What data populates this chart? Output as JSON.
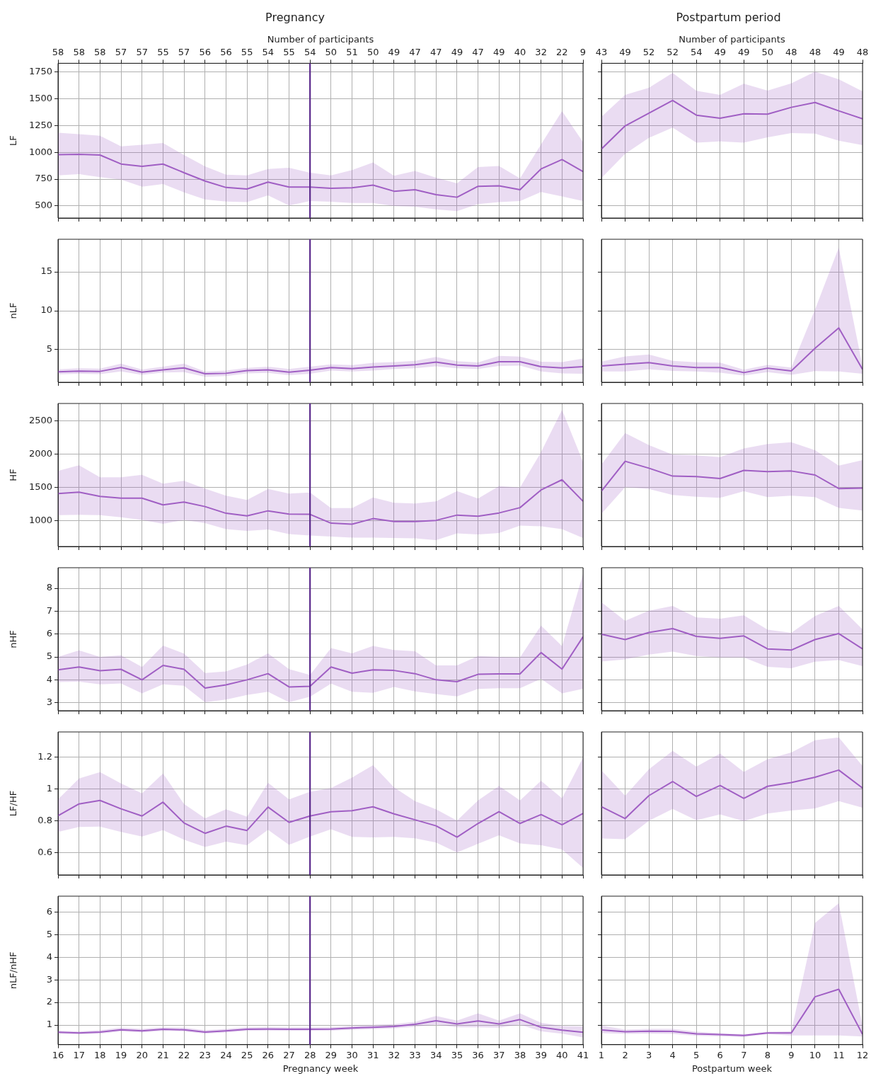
{
  "chart_data": [
    {
      "type": "line",
      "title": "Pregnancy",
      "ylabel": "LF",
      "x2label": "Number of participants",
      "x": [
        16,
        17,
        18,
        19,
        20,
        21,
        22,
        23,
        24,
        25,
        26,
        27,
        28,
        29,
        30,
        31,
        32,
        33,
        34,
        35,
        36,
        37,
        38,
        39,
        40,
        41
      ],
      "xlim": [
        16,
        41
      ],
      "xticks": [
        16,
        17,
        18,
        19,
        20,
        21,
        22,
        23,
        24,
        25,
        26,
        27,
        28,
        29,
        30,
        31,
        32,
        33,
        34,
        35,
        36,
        37,
        38,
        39,
        40,
        41
      ],
      "annotations": [
        "58",
        "58",
        "58",
        "57",
        "57",
        "55",
        "57",
        "56",
        "56",
        "55",
        "54",
        "55",
        "54",
        "50",
        "51",
        "50",
        "49",
        "47",
        "47",
        "49",
        "47",
        "49",
        "40",
        "32",
        "22",
        "9"
      ],
      "ylim": [
        387,
        1831
      ],
      "yticks": [
        500,
        750,
        1000,
        1250,
        1500,
        1750
      ],
      "grid": true,
      "tick_labels": "y",
      "ref_lines": [
        {
          "axis": "x",
          "value": 28,
          "color": "#5b2a8c"
        }
      ],
      "series": [
        {
          "color": "#a15fc4",
          "values": [
            979,
            982,
            975,
            891,
            870,
            891,
            810,
            732,
            672,
            658,
            722,
            676,
            676,
            665,
            669,
            694,
            637,
            651,
            605,
            581,
            683,
            687,
            651,
            845,
            933,
            820
          ],
          "lower": [
            785,
            796,
            768,
            746,
            680,
            704,
            627,
            560,
            540,
            535,
            599,
            505,
            546,
            539,
            528,
            528,
            500,
            493,
            468,
            451,
            518,
            535,
            546,
            630,
            588,
            546
          ],
          "upper": [
            1183,
            1169,
            1155,
            1056,
            1070,
            1088,
            975,
            870,
            792,
            785,
            845,
            856,
            810,
            785,
            835,
            905,
            782,
            827,
            764,
            711,
            863,
            873,
            757,
            1074,
            1384,
            1095
          ]
        }
      ]
    },
    {
      "type": "line",
      "title": "Postpartum period",
      "x2label": "Number of participants",
      "x": [
        1,
        2,
        3,
        4,
        5,
        6,
        7,
        8,
        9,
        10,
        11,
        12
      ],
      "xlim": [
        1,
        12
      ],
      "xticks": [
        1,
        2,
        3,
        4,
        5,
        6,
        7,
        8,
        9,
        10,
        11,
        12
      ],
      "annotations": [
        "43",
        "49",
        "52",
        "52",
        "54",
        "49",
        "49",
        "50",
        "48",
        "48",
        "49",
        "48"
      ],
      "ylim": [
        387,
        1831
      ],
      "yticks": [
        500,
        750,
        1000,
        1250,
        1500,
        1750
      ],
      "grid": true,
      "tick_labels": false,
      "series": [
        {
          "color": "#a15fc4",
          "values": [
            1031,
            1247,
            1365,
            1485,
            1347,
            1318,
            1360,
            1356,
            1420,
            1465,
            1387,
            1313
          ],
          "lower": [
            761,
            986,
            1135,
            1231,
            1091,
            1102,
            1091,
            1140,
            1180,
            1175,
            1109,
            1068
          ],
          "upper": [
            1331,
            1536,
            1603,
            1741,
            1574,
            1536,
            1641,
            1576,
            1643,
            1752,
            1681,
            1570
          ]
        }
      ]
    },
    {
      "type": "line",
      "ylabel": "nLF",
      "x": [
        16,
        17,
        18,
        19,
        20,
        21,
        22,
        23,
        24,
        25,
        26,
        27,
        28,
        29,
        30,
        31,
        32,
        33,
        34,
        35,
        36,
        37,
        38,
        39,
        40,
        41
      ],
      "xlim": [
        16,
        41
      ],
      "xticks": [
        16,
        17,
        18,
        19,
        20,
        21,
        22,
        23,
        24,
        25,
        26,
        27,
        28,
        29,
        30,
        31,
        32,
        33,
        34,
        35,
        36,
        37,
        38,
        39,
        40,
        41
      ],
      "ylim": [
        0.8,
        19.2
      ],
      "yticks": [
        5,
        10,
        15
      ],
      "grid": true,
      "tick_labels": "y",
      "ref_lines": [
        {
          "axis": "x",
          "value": 28,
          "color": "#5b2a8c"
        }
      ],
      "series": [
        {
          "color": "#a15fc4",
          "values": [
            2.15,
            2.24,
            2.2,
            2.7,
            2.1,
            2.4,
            2.65,
            1.9,
            1.95,
            2.3,
            2.4,
            2.1,
            2.35,
            2.7,
            2.55,
            2.75,
            2.9,
            3.05,
            3.4,
            3.0,
            2.9,
            3.45,
            3.45,
            2.8,
            2.65,
            2.8
          ],
          "lower": [
            1.83,
            1.9,
            1.85,
            2.2,
            1.75,
            2.05,
            2.1,
            1.5,
            1.6,
            1.95,
            2.0,
            1.7,
            1.9,
            2.3,
            2.2,
            2.3,
            2.5,
            2.6,
            2.85,
            2.6,
            2.5,
            2.9,
            2.95,
            2.2,
            1.95,
            1.9
          ],
          "upper": [
            2.47,
            2.6,
            2.55,
            3.2,
            2.45,
            2.8,
            3.2,
            2.2,
            2.3,
            2.65,
            2.8,
            2.5,
            2.8,
            3.1,
            3.0,
            3.3,
            3.4,
            3.55,
            4.05,
            3.5,
            3.35,
            4.2,
            4.1,
            3.45,
            3.4,
            3.85
          ]
        }
      ]
    },
    {
      "type": "line",
      "x": [
        1,
        2,
        3,
        4,
        5,
        6,
        7,
        8,
        9,
        10,
        11,
        12
      ],
      "xlim": [
        1,
        12
      ],
      "xticks": [
        1,
        2,
        3,
        4,
        5,
        6,
        7,
        8,
        9,
        10,
        11,
        12
      ],
      "ylim": [
        0.8,
        19.2
      ],
      "yticks": [
        5,
        10,
        15
      ],
      "grid": true,
      "tick_labels": false,
      "series": [
        {
          "color": "#a15fc4",
          "values": [
            2.89,
            3.12,
            3.32,
            2.89,
            2.69,
            2.69,
            2.04,
            2.61,
            2.26,
            5.17,
            7.79,
            2.46
          ],
          "lower": [
            2.18,
            2.18,
            2.46,
            2.26,
            2.18,
            2.04,
            1.67,
            2.09,
            1.75,
            2.24,
            2.18,
            1.89
          ],
          "upper": [
            3.46,
            4.12,
            4.37,
            3.55,
            3.38,
            3.32,
            2.41,
            3.03,
            2.69,
            10.16,
            18.13,
            2.89
          ]
        }
      ]
    },
    {
      "type": "line",
      "ylabel": "HF",
      "x": [
        16,
        17,
        18,
        19,
        20,
        21,
        22,
        23,
        24,
        25,
        26,
        27,
        28,
        29,
        30,
        31,
        32,
        33,
        34,
        35,
        36,
        37,
        38,
        39,
        40,
        41
      ],
      "xlim": [
        16,
        41
      ],
      "xticks": [
        16,
        17,
        18,
        19,
        20,
        21,
        22,
        23,
        24,
        25,
        26,
        27,
        28,
        29,
        30,
        31,
        32,
        33,
        34,
        35,
        36,
        37,
        38,
        39,
        40,
        41
      ],
      "ylim": [
        612,
        2766
      ],
      "yticks": [
        1000,
        1500,
        2000,
        2500
      ],
      "grid": true,
      "tick_labels": "y",
      "ref_lines": [
        {
          "axis": "x",
          "value": 28,
          "color": "#5b2a8c"
        }
      ],
      "series": [
        {
          "color": "#a15fc4",
          "values": [
            1410,
            1431,
            1367,
            1340,
            1340,
            1239,
            1282,
            1213,
            1112,
            1074,
            1149,
            1101,
            1096,
            963,
            947,
            1032,
            989,
            989,
            1005,
            1085,
            1069,
            1117,
            1197,
            1463,
            1617,
            1293
          ],
          "lower": [
            1085,
            1090,
            1085,
            1053,
            1011,
            952,
            1011,
            963,
            872,
            846,
            867,
            798,
            777,
            761,
            745,
            745,
            739,
            734,
            707,
            809,
            793,
            814,
            926,
            915,
            872,
            739
          ],
          "upper": [
            1750,
            1835,
            1654,
            1654,
            1691,
            1559,
            1601,
            1484,
            1378,
            1314,
            1479,
            1410,
            1426,
            1191,
            1191,
            1351,
            1271,
            1261,
            1293,
            1447,
            1335,
            1521,
            1500,
            2032,
            2670,
            1883
          ]
        }
      ]
    },
    {
      "type": "line",
      "x": [
        1,
        2,
        3,
        4,
        5,
        6,
        7,
        8,
        9,
        10,
        11,
        12
      ],
      "xlim": [
        1,
        12
      ],
      "xticks": [
        1,
        2,
        3,
        4,
        5,
        6,
        7,
        8,
        9,
        10,
        11,
        12
      ],
      "ylim": [
        612,
        2766
      ],
      "yticks": [
        1000,
        1500,
        2000,
        2500
      ],
      "grid": true,
      "tick_labels": false,
      "series": [
        {
          "color": "#a15fc4",
          "values": [
            1445,
            1896,
            1792,
            1672,
            1665,
            1635,
            1759,
            1739,
            1749,
            1689,
            1485,
            1492
          ],
          "lower": [
            1104,
            1505,
            1478,
            1388,
            1361,
            1345,
            1445,
            1355,
            1378,
            1355,
            1194,
            1154
          ],
          "upper": [
            1846,
            2320,
            2139,
            1996,
            1986,
            1959,
            2089,
            2156,
            2183,
            2063,
            1829,
            1912
          ]
        }
      ]
    },
    {
      "type": "line",
      "ylabel": "nHF",
      "x": [
        16,
        17,
        18,
        19,
        20,
        21,
        22,
        23,
        24,
        25,
        26,
        27,
        28,
        29,
        30,
        31,
        32,
        33,
        34,
        35,
        36,
        37,
        38,
        39,
        40,
        41
      ],
      "xlim": [
        16,
        41
      ],
      "xticks": [
        16,
        17,
        18,
        19,
        20,
        21,
        22,
        23,
        24,
        25,
        26,
        27,
        28,
        29,
        30,
        31,
        32,
        33,
        34,
        35,
        36,
        37,
        38,
        39,
        40,
        41
      ],
      "ylim": [
        2.65,
        8.9
      ],
      "yticks": [
        3,
        4,
        5,
        6,
        7,
        8
      ],
      "grid": true,
      "tick_labels": "y",
      "ref_lines": [
        {
          "axis": "x",
          "value": 28,
          "color": "#5b2a8c"
        }
      ],
      "series": [
        {
          "color": "#a15fc4",
          "values": [
            4.44,
            4.56,
            4.4,
            4.46,
            4.0,
            4.63,
            4.46,
            3.64,
            3.78,
            4.0,
            4.27,
            3.69,
            3.72,
            4.56,
            4.29,
            4.44,
            4.41,
            4.27,
            4.0,
            3.92,
            4.24,
            4.26,
            4.26,
            5.19,
            4.47,
            5.88
          ],
          "lower": [
            3.9,
            3.92,
            3.8,
            3.84,
            3.41,
            3.8,
            3.74,
            3.02,
            3.14,
            3.34,
            3.48,
            3.02,
            3.26,
            3.83,
            3.48,
            3.43,
            3.69,
            3.49,
            3.38,
            3.28,
            3.6,
            3.63,
            3.63,
            4.04,
            3.41,
            3.61
          ],
          "upper": [
            5.0,
            5.29,
            5.0,
            5.07,
            4.56,
            5.5,
            5.15,
            4.3,
            4.37,
            4.67,
            5.16,
            4.47,
            4.21,
            5.39,
            5.16,
            5.48,
            5.3,
            5.25,
            4.63,
            4.63,
            5.04,
            5.0,
            4.98,
            6.37,
            5.47,
            8.63
          ]
        }
      ]
    },
    {
      "type": "line",
      "x": [
        1,
        2,
        3,
        4,
        5,
        6,
        7,
        8,
        9,
        10,
        11,
        12
      ],
      "xlim": [
        1,
        12
      ],
      "xticks": [
        1,
        2,
        3,
        4,
        5,
        6,
        7,
        8,
        9,
        10,
        11,
        12
      ],
      "ylim": [
        2.65,
        8.9
      ],
      "yticks": [
        3,
        4,
        5,
        6,
        7,
        8
      ],
      "grid": true,
      "tick_labels": false,
      "series": [
        {
          "color": "#a15fc4",
          "values": [
            5.99,
            5.76,
            6.07,
            6.24,
            5.9,
            5.81,
            5.92,
            5.35,
            5.3,
            5.76,
            6.02,
            5.35
          ],
          "lower": [
            4.8,
            4.89,
            5.1,
            5.23,
            5.04,
            4.98,
            4.98,
            4.57,
            4.51,
            4.79,
            4.86,
            4.6
          ],
          "upper": [
            7.39,
            6.58,
            7.02,
            7.23,
            6.73,
            6.67,
            6.82,
            6.19,
            6.05,
            6.79,
            7.23,
            6.21
          ]
        }
      ]
    },
    {
      "type": "line",
      "ylabel": "LF/HF",
      "x": [
        16,
        17,
        18,
        19,
        20,
        21,
        22,
        23,
        24,
        25,
        26,
        27,
        28,
        29,
        30,
        31,
        32,
        33,
        34,
        35,
        36,
        37,
        38,
        39,
        40,
        41
      ],
      "xlim": [
        16,
        41
      ],
      "xticks": [
        16,
        17,
        18,
        19,
        20,
        21,
        22,
        23,
        24,
        25,
        26,
        27,
        28,
        29,
        30,
        31,
        32,
        33,
        34,
        35,
        36,
        37,
        38,
        39,
        40,
        41
      ],
      "ylim": [
        0.46,
        1.36
      ],
      "yticks": [
        0.6,
        0.8,
        1,
        1.2
      ],
      "grid": true,
      "tick_labels": "y",
      "ref_lines": [
        {
          "axis": "x",
          "value": 28,
          "color": "#5b2a8c"
        }
      ],
      "series": [
        {
          "color": "#a15fc4",
          "values": [
            0.833,
            0.907,
            0.929,
            0.876,
            0.831,
            0.918,
            0.787,
            0.722,
            0.767,
            0.74,
            0.887,
            0.791,
            0.831,
            0.858,
            0.864,
            0.889,
            0.844,
            0.807,
            0.769,
            0.698,
            0.784,
            0.858,
            0.784,
            0.84,
            0.776,
            0.847
          ],
          "lower": [
            0.731,
            0.762,
            0.764,
            0.731,
            0.702,
            0.742,
            0.682,
            0.636,
            0.669,
            0.647,
            0.744,
            0.649,
            0.702,
            0.747,
            0.7,
            0.696,
            0.7,
            0.691,
            0.664,
            0.602,
            0.656,
            0.709,
            0.658,
            0.647,
            0.62,
            0.504
          ],
          "upper": [
            0.936,
            1.067,
            1.107,
            1.036,
            0.973,
            1.098,
            0.907,
            0.816,
            0.873,
            0.827,
            1.04,
            0.936,
            0.984,
            1.007,
            1.073,
            1.151,
            1.011,
            0.924,
            0.873,
            0.802,
            0.929,
            1.02,
            0.929,
            1.053,
            0.942,
            1.198
          ]
        }
      ]
    },
    {
      "type": "line",
      "x": [
        1,
        2,
        3,
        4,
        5,
        6,
        7,
        8,
        9,
        10,
        11,
        12
      ],
      "xlim": [
        1,
        12
      ],
      "xticks": [
        1,
        2,
        3,
        4,
        5,
        6,
        7,
        8,
        9,
        10,
        11,
        12
      ],
      "ylim": [
        0.46,
        1.36
      ],
      "yticks": [
        0.6,
        0.8,
        1,
        1.2
      ],
      "grid": true,
      "tick_labels": false,
      "series": [
        {
          "color": "#a15fc4",
          "values": [
            0.889,
            0.815,
            0.959,
            1.048,
            0.954,
            1.023,
            0.942,
            1.018,
            1.041,
            1.075,
            1.12,
            1.007
          ],
          "lower": [
            0.689,
            0.685,
            0.801,
            0.875,
            0.804,
            0.841,
            0.799,
            0.846,
            0.865,
            0.879,
            0.924,
            0.883
          ],
          "upper": [
            1.118,
            0.959,
            1.125,
            1.241,
            1.142,
            1.224,
            1.108,
            1.189,
            1.231,
            1.308,
            1.325,
            1.146
          ]
        }
      ]
    },
    {
      "type": "line",
      "ylabel": "nLF/nHF",
      "xlabel": "Pregnancy week",
      "x": [
        16,
        17,
        18,
        19,
        20,
        21,
        22,
        23,
        24,
        25,
        26,
        27,
        28,
        29,
        30,
        31,
        32,
        33,
        34,
        35,
        36,
        37,
        38,
        39,
        40,
        41
      ],
      "xlim": [
        16,
        41
      ],
      "xticks": [
        16,
        17,
        18,
        19,
        20,
        21,
        22,
        23,
        24,
        25,
        26,
        27,
        28,
        29,
        30,
        31,
        32,
        33,
        34,
        35,
        36,
        37,
        38,
        39,
        40,
        41
      ],
      "ylim": [
        0.13,
        6.7
      ],
      "yticks": [
        1,
        2,
        3,
        4,
        5,
        6
      ],
      "grid": true,
      "ref_lines": [
        {
          "axis": "x",
          "value": 28,
          "color": "#5b2a8c"
        }
      ],
      "series": [
        {
          "color": "#a15fc4",
          "values": [
            0.68,
            0.65,
            0.69,
            0.79,
            0.74,
            0.81,
            0.79,
            0.69,
            0.74,
            0.81,
            0.82,
            0.81,
            0.81,
            0.82,
            0.87,
            0.9,
            0.94,
            1.03,
            1.19,
            1.05,
            1.18,
            1.05,
            1.24,
            0.9,
            0.77,
            0.68
          ],
          "lower": [
            0.62,
            0.6,
            0.62,
            0.72,
            0.67,
            0.74,
            0.72,
            0.62,
            0.67,
            0.74,
            0.75,
            0.74,
            0.74,
            0.75,
            0.79,
            0.82,
            0.85,
            0.92,
            1.02,
            0.9,
            0.9,
            0.88,
            1.02,
            0.72,
            0.62,
            0.45
          ],
          "upper": [
            0.75,
            0.72,
            0.77,
            0.88,
            0.83,
            0.9,
            0.88,
            0.77,
            0.83,
            0.9,
            0.91,
            0.9,
            0.9,
            0.91,
            0.96,
            1.0,
            1.04,
            1.14,
            1.4,
            1.2,
            1.52,
            1.2,
            1.52,
            1.1,
            0.95,
            0.94
          ]
        }
      ]
    },
    {
      "type": "line",
      "xlabel": "Postpartum week",
      "x": [
        1,
        2,
        3,
        4,
        5,
        6,
        7,
        8,
        9,
        10,
        11,
        12
      ],
      "xlim": [
        1,
        12
      ],
      "xticks": [
        1,
        2,
        3,
        4,
        5,
        6,
        7,
        8,
        9,
        10,
        11,
        12
      ],
      "ylim": [
        0.13,
        6.7
      ],
      "yticks": [
        1,
        2,
        3,
        4,
        5,
        6
      ],
      "grid": true,
      "tick_labels": "x",
      "series": [
        {
          "color": "#a15fc4",
          "values": [
            0.78,
            0.7,
            0.73,
            0.72,
            0.61,
            0.58,
            0.54,
            0.65,
            0.65,
            2.25,
            2.58,
            0.59
          ],
          "lower": [
            0.64,
            0.61,
            0.62,
            0.61,
            0.52,
            0.5,
            0.47,
            0.59,
            0.54,
            0.54,
            0.54,
            0.49
          ],
          "upper": [
            0.98,
            0.8,
            0.83,
            0.83,
            0.7,
            0.64,
            0.59,
            0.7,
            0.72,
            5.52,
            6.39,
            0.95
          ]
        }
      ]
    }
  ]
}
